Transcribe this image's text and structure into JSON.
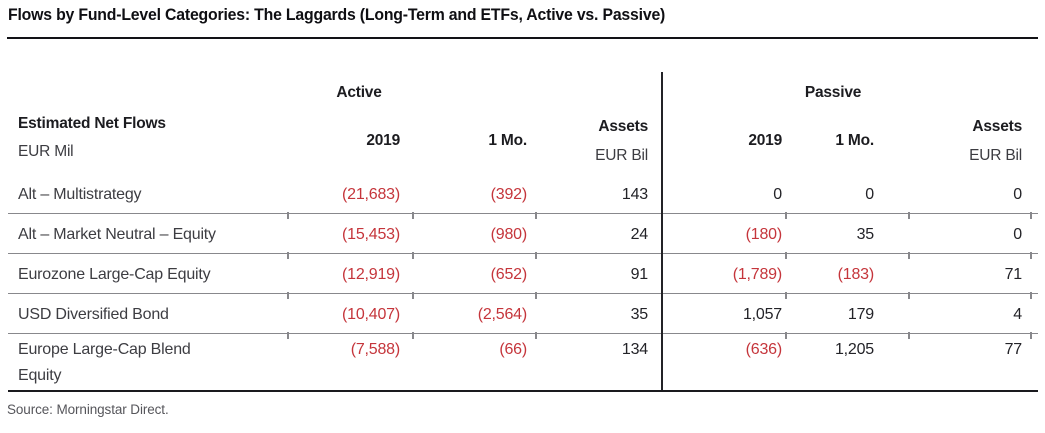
{
  "title": "Flows by Fund-Level Categories: The Laggards (Long-Term and ETFs, Active vs. Passive)",
  "source": "Source: Morningstar Direct.",
  "colors": {
    "negative_red": "#c5353b",
    "text": "#232328",
    "rule_gray": "#88888c",
    "rule_black": "#1a1a1e"
  },
  "table": {
    "row_header": {
      "title": "Estimated Net Flows",
      "subtitle": "EUR Mil"
    },
    "groups": [
      {
        "label": "Active",
        "columns": [
          {
            "label": "2019"
          },
          {
            "label": "1 Mo."
          },
          {
            "label": "Assets",
            "sublabel": "EUR Bil"
          }
        ]
      },
      {
        "label": "Passive",
        "columns": [
          {
            "label": "2019"
          },
          {
            "label": "1 Mo."
          },
          {
            "label": "Assets",
            "sublabel": "EUR Bil"
          }
        ]
      }
    ],
    "rows": [
      {
        "label_lines": [
          "Alt – Multistrategy"
        ],
        "active": [
          "(21,683)",
          "(392)",
          "143"
        ],
        "passive": [
          "0",
          "0",
          "0"
        ]
      },
      {
        "label_lines": [
          "Alt – Market Neutral – Equity"
        ],
        "active": [
          "(15,453)",
          "(980)",
          "24"
        ],
        "passive": [
          "(180)",
          "35",
          "0"
        ]
      },
      {
        "label_lines": [
          "Eurozone Large-Cap Equity"
        ],
        "active": [
          "(12,919)",
          "(652)",
          "91"
        ],
        "passive": [
          "(1,789)",
          "(183)",
          "71"
        ]
      },
      {
        "label_lines": [
          "USD Diversified Bond"
        ],
        "active": [
          "(10,407)",
          "(2,564)",
          "35"
        ],
        "passive": [
          "1,057",
          "179",
          "4"
        ]
      },
      {
        "label_lines": [
          "Europe Large-Cap Blend",
          "Equity"
        ],
        "active": [
          "(7,588)",
          "(66)",
          "134"
        ],
        "passive": [
          "(636)",
          "1,205",
          "77"
        ]
      }
    ]
  },
  "chart_data": {
    "type": "table",
    "title": "Flows by Fund-Level Categories: The Laggards (Long-Term and ETFs, Active vs. Passive)",
    "units": {
      "net_flows": "EUR Mil",
      "assets": "EUR Bil"
    },
    "categories": [
      "Alt – Multistrategy",
      "Alt – Market Neutral – Equity",
      "Eurozone Large-Cap Equity",
      "USD Diversified Bond",
      "Europe Large-Cap Blend Equity"
    ],
    "series": [
      {
        "name": "Active 2019 Net Flows (EUR Mil)",
        "values": [
          -21683,
          -15453,
          -12919,
          -10407,
          -7588
        ]
      },
      {
        "name": "Active 1 Mo. Net Flows (EUR Mil)",
        "values": [
          -392,
          -980,
          -652,
          -2564,
          -66
        ]
      },
      {
        "name": "Active Assets (EUR Bil)",
        "values": [
          143,
          24,
          91,
          35,
          134
        ]
      },
      {
        "name": "Passive 2019 Net Flows (EUR Mil)",
        "values": [
          0,
          -180,
          -1789,
          1057,
          -636
        ]
      },
      {
        "name": "Passive 1 Mo. Net Flows (EUR Mil)",
        "values": [
          0,
          35,
          -183,
          179,
          1205
        ]
      },
      {
        "name": "Passive Assets (EUR Bil)",
        "values": [
          0,
          0,
          71,
          4,
          77
        ]
      }
    ],
    "notes": "Values in parentheses are negative and shown in red. Source: Morningstar Direct."
  }
}
